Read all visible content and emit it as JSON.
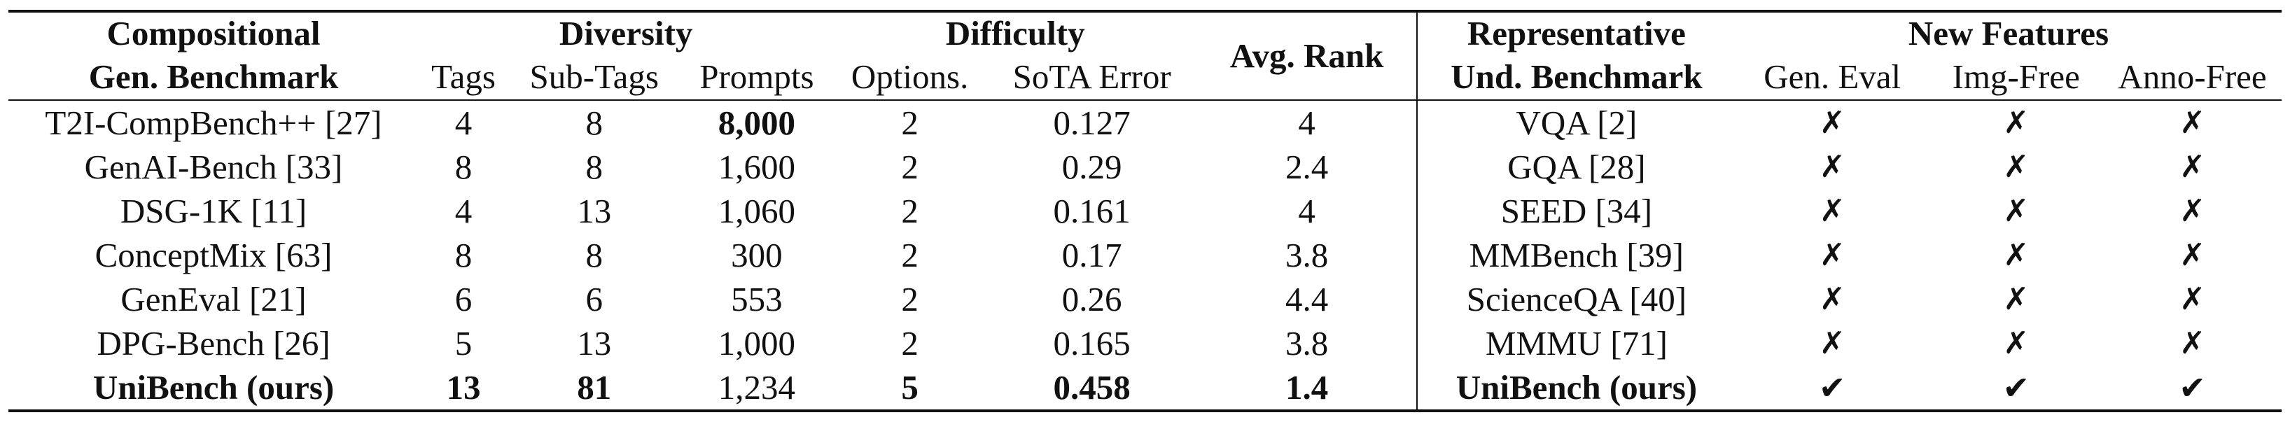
{
  "header": {
    "left_group": {
      "line1": "Compositional",
      "line2": "Gen. Benchmark"
    },
    "diversity": {
      "label": "Diversity",
      "cols": [
        "Tags",
        "Sub-Tags",
        "Prompts"
      ]
    },
    "difficulty": {
      "label": "Difficulty",
      "cols": [
        "Options.",
        "SoTA Error"
      ]
    },
    "avg_rank": "Avg. Rank",
    "right_group": {
      "line1": "Representative",
      "line2": "Und. Benchmark"
    },
    "new_features": {
      "label": "New Features",
      "cols": [
        "Gen. Eval",
        "Img-Free",
        "Anno-Free"
      ]
    }
  },
  "marks": {
    "cross": "✗",
    "check": "✔"
  },
  "rows": [
    {
      "bench": "T2I-CompBench++ [27]",
      "tags": "4",
      "subtags": "8",
      "prompts": "8,000",
      "options": "2",
      "sota": "0.127",
      "rank": "4",
      "und": "VQA [2]",
      "gen_eval": "✗",
      "img_free": "✗",
      "anno_free": "✗"
    },
    {
      "bench": "GenAI-Bench [33]",
      "tags": "8",
      "subtags": "8",
      "prompts": "1,600",
      "options": "2",
      "sota": "0.29",
      "rank": "2.4",
      "und": "GQA [28]",
      "gen_eval": "✗",
      "img_free": "✗",
      "anno_free": "✗"
    },
    {
      "bench": "DSG-1K [11]",
      "tags": "4",
      "subtags": "13",
      "prompts": "1,060",
      "options": "2",
      "sota": "0.161",
      "rank": "4",
      "und": "SEED [34]",
      "gen_eval": "✗",
      "img_free": "✗",
      "anno_free": "✗"
    },
    {
      "bench": "ConceptMix [63]",
      "tags": "8",
      "subtags": "8",
      "prompts": "300",
      "options": "2",
      "sota": "0.17",
      "rank": "3.8",
      "und": "MMBench [39]",
      "gen_eval": "✗",
      "img_free": "✗",
      "anno_free": "✗"
    },
    {
      "bench": "GenEval [21]",
      "tags": "6",
      "subtags": "6",
      "prompts": "553",
      "options": "2",
      "sota": "0.26",
      "rank": "4.4",
      "und": "ScienceQA [40]",
      "gen_eval": "✗",
      "img_free": "✗",
      "anno_free": "✗"
    },
    {
      "bench": "DPG-Bench [26]",
      "tags": "5",
      "subtags": "13",
      "prompts": "1,000",
      "options": "2",
      "sota": "0.165",
      "rank": "3.8",
      "und": "MMMU [71]",
      "gen_eval": "✗",
      "img_free": "✗",
      "anno_free": "✗"
    },
    {
      "bench": "UniBench (ours)",
      "tags": "13",
      "subtags": "81",
      "prompts": "1,234",
      "options": "5",
      "sota": "0.458",
      "rank": "1.4",
      "und": "UniBench (ours)",
      "gen_eval": "✔",
      "img_free": "✔",
      "anno_free": "✔"
    }
  ]
}
